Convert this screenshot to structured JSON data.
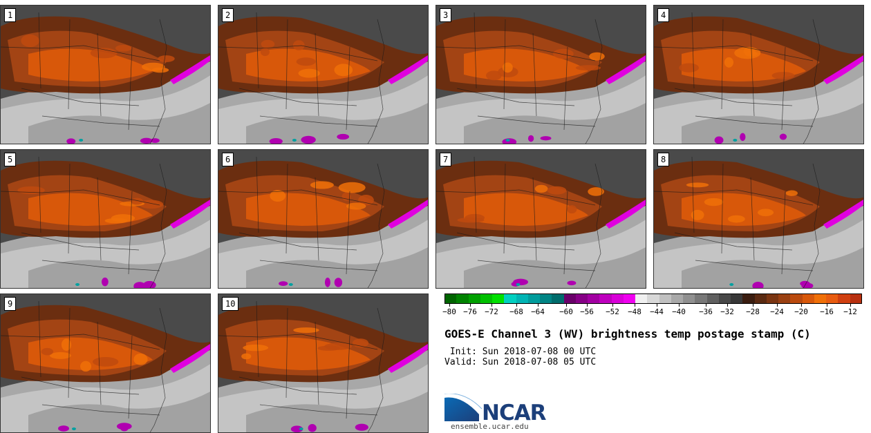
{
  "panels": [
    {
      "label": "1",
      "seed": 1
    },
    {
      "label": "2",
      "seed": 2
    },
    {
      "label": "3",
      "seed": 3
    },
    {
      "label": "4",
      "seed": 4
    },
    {
      "label": "5",
      "seed": 5
    },
    {
      "label": "6",
      "seed": 6
    },
    {
      "label": "7",
      "seed": 7
    },
    {
      "label": "8",
      "seed": 8
    },
    {
      "label": "9",
      "seed": 9
    },
    {
      "label": "10",
      "seed": 10
    }
  ],
  "colorbar": {
    "ticks": [
      "−80",
      "−76",
      "−72",
      "−68",
      "−64",
      "−60",
      "−56",
      "−52",
      "−48",
      "−44",
      "−40",
      "−36",
      "−32",
      "−28",
      "−24",
      "−20",
      "−16",
      "−12"
    ],
    "colors": [
      "#006400",
      "#008200",
      "#00a000",
      "#00c000",
      "#00e000",
      "#00d0c0",
      "#00b4b4",
      "#009c9c",
      "#008484",
      "#006c6c",
      "#6a006a",
      "#860086",
      "#a200a2",
      "#be00be",
      "#d800d8",
      "#f000f0",
      "#f0f0f0",
      "#d8d8d8",
      "#c0c0c0",
      "#a8a8a8",
      "#909090",
      "#787878",
      "#606060",
      "#484848",
      "#383838",
      "#3a1d10",
      "#5a2a12",
      "#7a3512",
      "#9a4012",
      "#ba4a0e",
      "#d8580a",
      "#f07008",
      "#e85c10",
      "#d04010",
      "#b83010"
    ]
  },
  "title": "GOES-E Channel 3 (WV) brightness temp postage stamp (C)",
  "init_line": " Init: Sun 2018-07-08 00 UTC",
  "valid_line": "Valid: Sun 2018-07-08 05 UTC",
  "logo": {
    "text": "NCAR",
    "url": "ensemble.ucar.edu"
  }
}
